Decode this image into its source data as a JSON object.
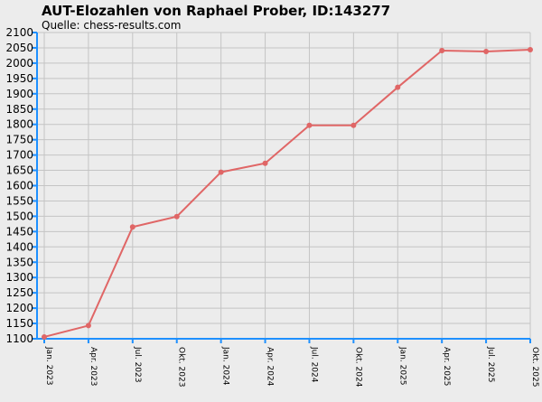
{
  "chart_data": {
    "type": "line",
    "title": "AUT-Elozahlen von Raphael Prober, ID:143277",
    "subtitle": "Quelle: chess-results.com",
    "x": [
      "Jan. 2023",
      "Apr. 2023",
      "Jul. 2023",
      "Okt. 2023",
      "Jan. 2024",
      "Apr. 2024",
      "Jul. 2024",
      "Okt. 2024",
      "Jan. 2025",
      "Apr. 2025",
      "Jul. 2025",
      "Okt. 2025"
    ],
    "series": [
      {
        "values": [
          1106,
          1143,
          1465,
          1499,
          1644,
          1673,
          1797,
          1797,
          1921,
          2041,
          2038,
          2044
        ]
      }
    ],
    "ylim": [
      1100,
      2100
    ],
    "yticks": [
      1100,
      1150,
      1200,
      1250,
      1300,
      1350,
      1400,
      1450,
      1500,
      1550,
      1600,
      1650,
      1700,
      1750,
      1800,
      1850,
      1900,
      1950,
      2000,
      2050,
      2100
    ],
    "grid": true,
    "legend": "none",
    "colors": {
      "line": "#e06666",
      "axis": "#1e90ff",
      "grid": "#c4c4c4",
      "background": "#ececec"
    }
  }
}
